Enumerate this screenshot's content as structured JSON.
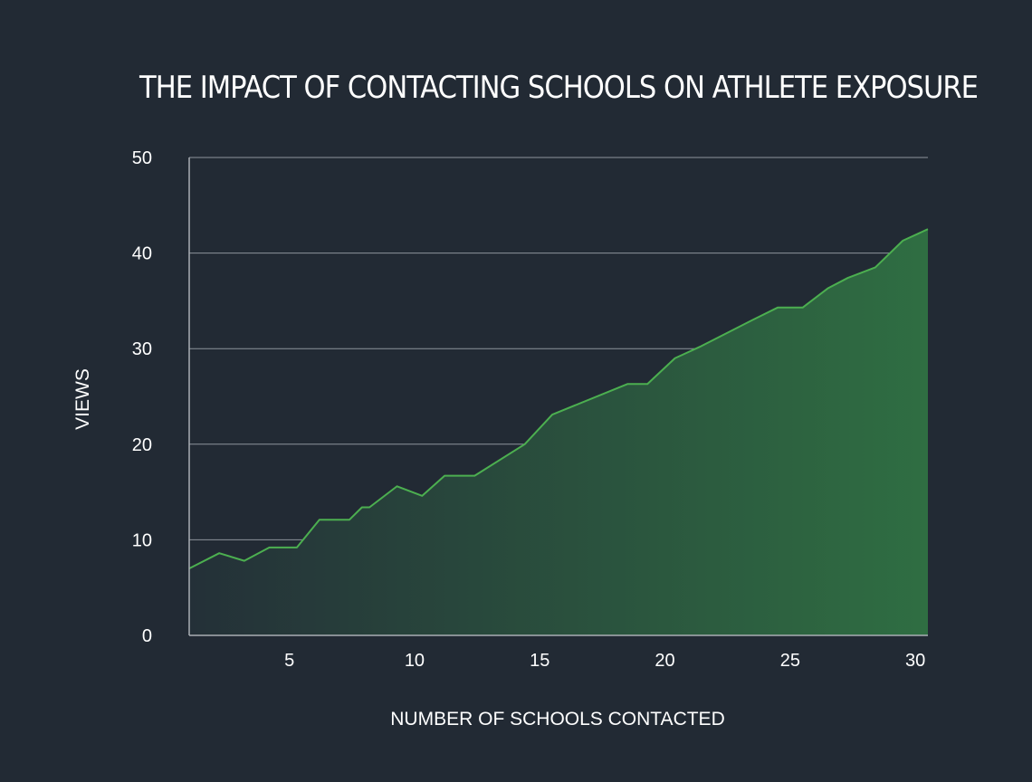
{
  "chart_data": {
    "type": "area",
    "title": "THE IMPACT OF CONTACTING SCHOOLS ON ATHLETE EXPOSURE",
    "xlabel": "NUMBER OF SCHOOLS CONTACTED",
    "ylabel": "VIEWS",
    "xlim": [
      1,
      30.5
    ],
    "ylim": [
      0,
      50
    ],
    "x_ticks": [
      5,
      10,
      15,
      20,
      25,
      30
    ],
    "y_ticks": [
      0,
      10,
      20,
      30,
      40,
      50
    ],
    "grid": true,
    "series": [
      {
        "x": [
          1,
          2.2,
          3.2,
          4.2,
          5.3,
          6.2,
          7.4,
          7.9,
          8.2,
          9.3,
          10.3,
          11.2,
          12.4,
          14.4,
          15.5,
          18.5,
          19.3,
          20.4,
          21.4,
          23.5,
          24.5,
          25.5,
          26.5,
          27.3,
          28.4,
          29.5,
          30.5
        ],
        "y": [
          7.0,
          8.6,
          7.8,
          9.2,
          9.2,
          12.1,
          12.1,
          13.4,
          13.4,
          15.6,
          14.6,
          16.7,
          16.7,
          20.0,
          23.1,
          26.3,
          26.3,
          29.0,
          30.2,
          33.0,
          34.3,
          34.3,
          36.3,
          37.4,
          38.5,
          41.3,
          42.5
        ]
      }
    ],
    "colors": {
      "background": "#222a34",
      "line": "#4caf50",
      "fill_start": "#243038",
      "fill_end": "#2f6e42",
      "grid": "#8d949b",
      "axis": "#a9aeb3"
    }
  }
}
